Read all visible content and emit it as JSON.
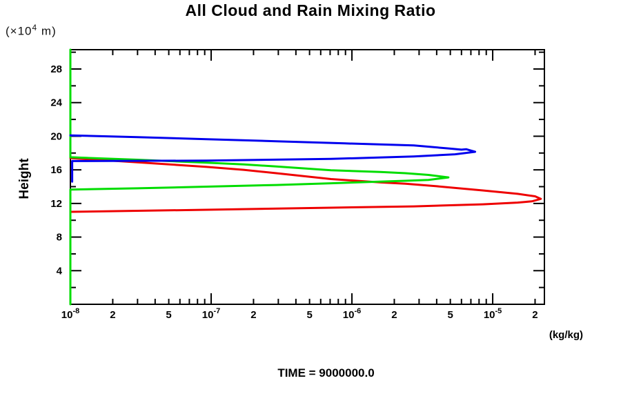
{
  "page": {
    "background": "#ffffff"
  },
  "chart_data": {
    "type": "line",
    "title": "All Cloud and Rain Mixing Ratio",
    "y_unit": {
      "pre": "(×10",
      "exp": "4",
      "post": " m)"
    },
    "ylabel": "Height",
    "x_unit": "(kg/kg)",
    "time_label": "TIME = 9000000.0",
    "xscale": "log",
    "xlim": [
      1e-08,
      2.33e-05
    ],
    "ylim": [
      0,
      30.3
    ],
    "grid": false,
    "legend": "none",
    "axis_color": "#000000",
    "x_ticks": [
      {
        "v": 1e-08,
        "t": "10",
        "e": "-8"
      },
      {
        "v": 2e-08,
        "t": "2"
      },
      {
        "v": 5e-08,
        "t": "5"
      },
      {
        "v": 1e-07,
        "t": "10",
        "e": "-7"
      },
      {
        "v": 2e-07,
        "t": "2"
      },
      {
        "v": 5e-07,
        "t": "5"
      },
      {
        "v": 1e-06,
        "t": "10",
        "e": "-6"
      },
      {
        "v": 2e-06,
        "t": "2"
      },
      {
        "v": 5e-06,
        "t": "5"
      },
      {
        "v": 1e-05,
        "t": "10",
        "e": "-5"
      },
      {
        "v": 2e-05,
        "t": "2"
      }
    ],
    "x_minor_multiples": [
      2,
      3,
      4,
      5,
      6,
      7,
      8,
      9
    ],
    "x_decades": [
      -8,
      -7,
      -6,
      -5
    ],
    "y_major_ticks": [
      4,
      8,
      12,
      16,
      20,
      24,
      28
    ],
    "y_minor_step": 2,
    "series": [
      {
        "name": "red-series",
        "color": "#ee0000",
        "points": [
          [
            1e-08,
            17.4
          ],
          [
            3e-08,
            16.9
          ],
          [
            9.3e-08,
            16.35
          ],
          [
            1.7e-07,
            16.0
          ],
          [
            2.9e-07,
            15.6
          ],
          [
            7.1e-07,
            14.9
          ],
          [
            1.6e-06,
            14.5
          ],
          [
            2.4e-06,
            14.35
          ],
          [
            4e-06,
            14.05
          ],
          [
            8.5e-06,
            13.55
          ],
          [
            1.5e-05,
            13.15
          ],
          [
            2e-05,
            12.85
          ],
          [
            2.2e-05,
            12.55
          ],
          [
            1.9e-05,
            12.25
          ],
          [
            1.5e-05,
            12.1
          ],
          [
            8.5e-06,
            11.9
          ],
          [
            2.75e-06,
            11.65
          ],
          [
            7.1e-07,
            11.5
          ],
          [
            9.3e-08,
            11.25
          ],
          [
            1e-08,
            11.0
          ]
        ]
      },
      {
        "name": "green-series",
        "color": "#00dd00",
        "points": [
          [
            1e-08,
            30.3
          ],
          [
            1e-08,
            17.5
          ],
          [
            3e-08,
            17.2
          ],
          [
            9.3e-08,
            16.85
          ],
          [
            1.7e-07,
            16.65
          ],
          [
            2.9e-07,
            16.4
          ],
          [
            7.1e-07,
            15.95
          ],
          [
            1.6e-06,
            15.75
          ],
          [
            2.4e-06,
            15.6
          ],
          [
            3.5e-06,
            15.4
          ],
          [
            4.85e-06,
            15.1
          ],
          [
            3.5e-06,
            14.8
          ],
          [
            2.4e-06,
            14.7
          ],
          [
            7.1e-07,
            14.4
          ],
          [
            2.9e-07,
            14.2
          ],
          [
            9.3e-08,
            14.0
          ],
          [
            3e-08,
            13.8
          ],
          [
            1e-08,
            13.65
          ],
          [
            1e-08,
            0.0
          ]
        ]
      },
      {
        "name": "blue-series",
        "color": "#0000ee",
        "points": [
          [
            1e-08,
            20.1
          ],
          [
            3e-08,
            19.9
          ],
          [
            9.3e-08,
            19.65
          ],
          [
            2.9e-07,
            19.4
          ],
          [
            8.9e-07,
            19.15
          ],
          [
            2.75e-06,
            18.9
          ],
          [
            4.85e-06,
            18.55
          ],
          [
            6e-06,
            18.4
          ],
          [
            6.5e-06,
            18.45
          ],
          [
            7.5e-06,
            18.15
          ],
          [
            5.4e-06,
            17.85
          ],
          [
            2.75e-06,
            17.6
          ],
          [
            7.1e-07,
            17.3
          ],
          [
            9.3e-08,
            17.1
          ],
          [
            1.03e-08,
            17.05
          ],
          [
            1.03e-08,
            14.6
          ]
        ]
      }
    ]
  }
}
